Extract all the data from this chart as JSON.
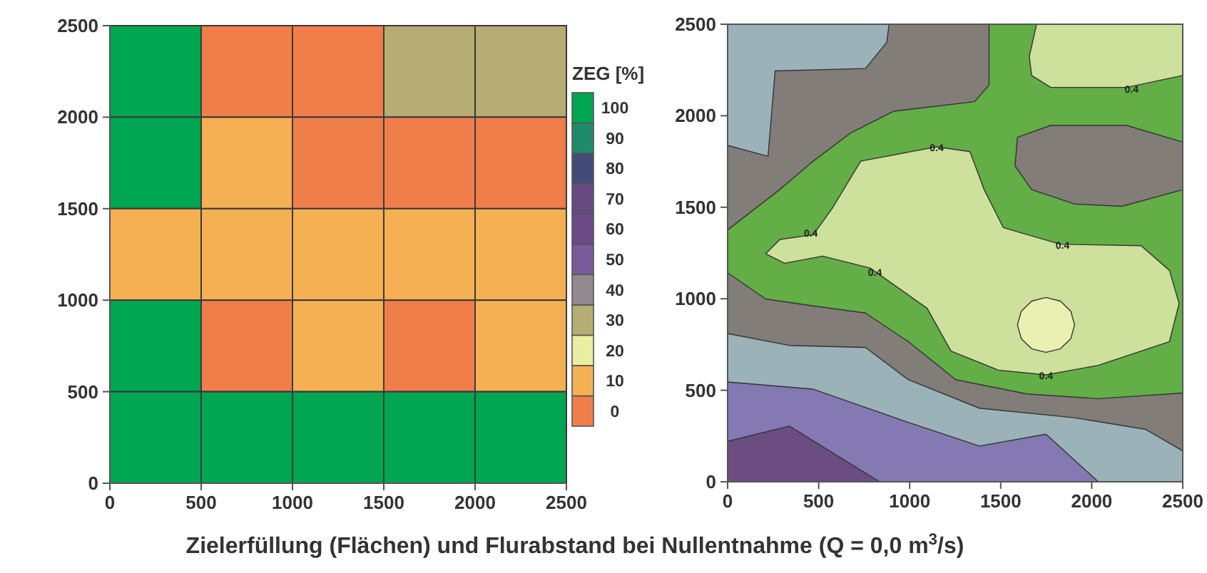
{
  "chart_data": [
    {
      "type": "heatmap",
      "title": "Zielerfüllung (Flächen) und Flurabstand bei Nullentnahme (Q = 0,0 m$^{3}$/s)",
      "clabel": "ZEG [%]",
      "x": [
        250,
        750,
        1250,
        1750,
        2250
      ],
      "y": [
        2250,
        1750,
        1250,
        750,
        250
      ],
      "xlim": [
        0,
        2500
      ],
      "xticks": [
        0,
        500,
        1000,
        1500,
        2000,
        2500
      ],
      "ylim": [
        0,
        2500
      ],
      "yticks": [
        0,
        500,
        1000,
        1500,
        2000,
        2500
      ],
      "cells": [
        [
          100,
          0,
          0,
          30,
          30
        ],
        [
          100,
          10,
          0,
          0,
          0
        ],
        [
          10,
          10,
          10,
          10,
          10
        ],
        [
          100,
          0,
          10,
          0,
          10
        ],
        [
          100,
          100,
          100,
          100,
          100
        ]
      ],
      "clim": [
        -5,
        105
      ],
      "cticks": [
        0,
        10,
        20,
        30,
        40,
        50,
        60,
        70,
        80,
        90,
        100
      ],
      "colors": [
        "#f07e4a",
        "#f5b054",
        "#e9eea0",
        "#b5ad74",
        "#938a8f",
        "#7a5b99",
        "#6b4a85",
        "#664a80",
        "#434b7a",
        "#1f8a6a",
        "#00a651"
      ]
    },
    {
      "type": "area",
      "series": [
        {
          "color": "#9ab2b8",
          "x": [
            0,
            339,
            757,
            992,
            1383,
            1905,
            2297,
            2500
          ],
          "values": [
            810,
            745,
            734,
            558,
            402,
            350,
            286,
            169
          ]
        },
        {
          "color": "#8479b2",
          "x": [
            0,
            470,
            992,
            1383,
            1749,
            2036
          ],
          "values": [
            545,
            506,
            325,
            195,
            260,
            0
          ]
        },
        {
          "color": "#6b4d82",
          "x": [
            0,
            339,
            835
          ],
          "values": [
            221,
            304,
            0
          ]
        },
        {
          "color": "#9ab2b8",
          "x": [
            0,
            887,
            874,
            757,
            261,
            222,
            0,
            0
          ],
          "values": [
            2500,
            2500,
            2401,
            2258,
            2245,
            1778,
            1838,
            2500
          ]
        },
        {
          "color": "#63ae47",
          "x": [
            1436,
            2500,
            2500,
            2036,
            1644,
            1253,
            992,
            757,
            470,
            209,
            0,
            0,
            287,
            470,
            679,
            914,
            1357,
            1436,
            1436
          ],
          "values": [
            2500,
            2500,
            485,
            454,
            480,
            558,
            766,
            922,
            961,
            999,
            1142,
            1376,
            1597,
            1752,
            1908,
            2025,
            2077,
            2168,
            2500
          ]
        },
        {
          "color": "#837d7a",
          "x": [
            2500,
            2192,
            1775,
            1592,
            1579,
            1670,
            1905,
            2166,
            2500,
            2500
          ],
          "values": [
            1856,
            1947,
            1947,
            1882,
            1726,
            1596,
            1518,
            1505,
            1596,
            1856
          ]
        },
        {
          "color": "#cde09c",
          "x": [
            1697,
            1657,
            1670,
            1775,
            2192,
            2500,
            2500,
            1697
          ],
          "values": [
            2500,
            2323,
            2220,
            2155,
            2155,
            2220,
            2500,
            2500
          ]
        },
        {
          "color": "#cde09c",
          "x": [
            731,
            1148,
            1331,
            1409,
            1514,
            1827,
            2271,
            2427,
            2480,
            2427,
            2036,
            1749,
            1488,
            1227,
            1096,
            783,
            522,
            313,
            209,
            287,
            470,
            574,
            731
          ],
          "values": [
            1752,
            1830,
            1804,
            1597,
            1389,
            1298,
            1290,
            1155,
            974,
            766,
            636,
            584,
            610,
            714,
            948,
            1168,
            1233,
            1194,
            1246,
            1324,
            1350,
            1493,
            1752
          ]
        },
        {
          "color": "#eaf0b2",
          "x": [
            1906,
            1885,
            1828,
            1749,
            1670,
            1613,
            1592,
            1613,
            1670,
            1749,
            1828,
            1885,
            1906
          ],
          "values": [
            857,
            932,
            987,
            1007,
            987,
            932,
            857,
            782,
            727,
            707,
            727,
            782,
            857
          ]
        }
      ],
      "xlim": [
        0,
        2500
      ],
      "xticks": [
        0,
        500,
        1000,
        1500,
        2000,
        2500
      ],
      "ylim": [
        0,
        2500
      ],
      "yticks": [
        0,
        500,
        1000,
        1500,
        2000,
        2500
      ],
      "annotations": [
        {
          "text": "0.4",
          "x": 2219,
          "y": 2150
        },
        {
          "text": "0.4",
          "x": 1148,
          "y": 1830
        },
        {
          "text": "0.4",
          "x": 457,
          "y": 1363
        },
        {
          "text": "0.4",
          "x": 809,
          "y": 1147
        },
        {
          "text": "0.4",
          "x": 1840,
          "y": 1298
        },
        {
          "text": "0.4",
          "x": 1749,
          "y": 584
        }
      ]
    }
  ]
}
